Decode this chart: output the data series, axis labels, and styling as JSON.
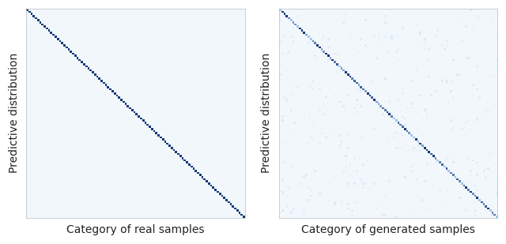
{
  "n_classes": 100,
  "background_color": "#f4f8fd",
  "fig_bg_color": "#ffffff",
  "xlabel_left": "Category of real samples",
  "xlabel_right": "Category of generated samples",
  "ylabel": "Predictive distribution",
  "ylabel_fontsize": 10,
  "xlabel_fontsize": 10,
  "figsize": [
    6.4,
    3.09
  ],
  "dpi": 100,
  "diag_dark_color": [
    0.08,
    0.22,
    0.48
  ],
  "diag_light_color": [
    0.65,
    0.78,
    0.92
  ],
  "noise_light_color": [
    0.75,
    0.87,
    0.96
  ],
  "bg_rgb": [
    0.95,
    0.97,
    0.99
  ]
}
